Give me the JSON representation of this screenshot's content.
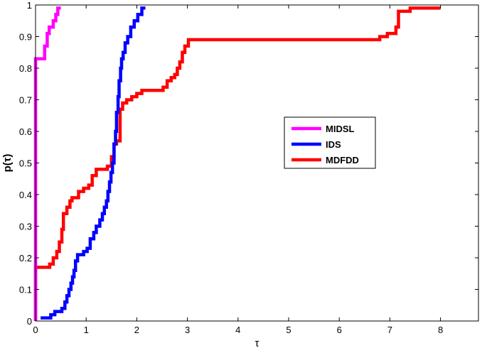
{
  "chart_data": {
    "type": "line",
    "title": "",
    "xlabel": "τ",
    "ylabel": "p(τ)",
    "xlim": [
      0,
      8.75
    ],
    "ylim": [
      0,
      1
    ],
    "xticks": [
      0,
      1,
      2,
      3,
      4,
      5,
      6,
      7,
      8
    ],
    "yticks": [
      0,
      0.1,
      0.2,
      0.3,
      0.4,
      0.5,
      0.6,
      0.7,
      0.8,
      0.9,
      1
    ],
    "xtick_labels": [
      "0",
      "1",
      "2",
      "3",
      "4",
      "5",
      "6",
      "7",
      "8"
    ],
    "ytick_labels": [
      "0",
      "0.1",
      "0.2",
      "0.3",
      "0.4",
      "0.5",
      "0.6",
      "0.7",
      "0.8",
      "0.9",
      "1"
    ],
    "grid": false,
    "legend_position": "center-right",
    "series": [
      {
        "name": "MIDSL",
        "color": "#ff00ff",
        "step": true,
        "points": [
          [
            0,
            0
          ],
          [
            0,
            0.83
          ],
          [
            0.18,
            0.83
          ],
          [
            0.18,
            0.87
          ],
          [
            0.23,
            0.87
          ],
          [
            0.23,
            0.91
          ],
          [
            0.27,
            0.91
          ],
          [
            0.27,
            0.93
          ],
          [
            0.35,
            0.93
          ],
          [
            0.35,
            0.95
          ],
          [
            0.4,
            0.95
          ],
          [
            0.4,
            0.97
          ],
          [
            0.44,
            0.97
          ],
          [
            0.44,
            0.99
          ],
          [
            0.5,
            0.99
          ]
        ]
      },
      {
        "name": "IDS",
        "color": "#0000ff",
        "step": true,
        "points": [
          [
            0.1,
            0.01
          ],
          [
            0.3,
            0.01
          ],
          [
            0.3,
            0.02
          ],
          [
            0.38,
            0.02
          ],
          [
            0.38,
            0.03
          ],
          [
            0.52,
            0.03
          ],
          [
            0.52,
            0.04
          ],
          [
            0.58,
            0.04
          ],
          [
            0.58,
            0.06
          ],
          [
            0.62,
            0.06
          ],
          [
            0.62,
            0.08
          ],
          [
            0.66,
            0.08
          ],
          [
            0.66,
            0.1
          ],
          [
            0.7,
            0.1
          ],
          [
            0.7,
            0.12
          ],
          [
            0.73,
            0.12
          ],
          [
            0.73,
            0.14
          ],
          [
            0.76,
            0.14
          ],
          [
            0.76,
            0.16
          ],
          [
            0.79,
            0.16
          ],
          [
            0.79,
            0.19
          ],
          [
            0.83,
            0.19
          ],
          [
            0.83,
            0.21
          ],
          [
            0.95,
            0.21
          ],
          [
            0.95,
            0.22
          ],
          [
            1.02,
            0.22
          ],
          [
            1.02,
            0.23
          ],
          [
            1.08,
            0.23
          ],
          [
            1.08,
            0.26
          ],
          [
            1.15,
            0.26
          ],
          [
            1.15,
            0.28
          ],
          [
            1.2,
            0.28
          ],
          [
            1.2,
            0.3
          ],
          [
            1.27,
            0.3
          ],
          [
            1.27,
            0.32
          ],
          [
            1.32,
            0.32
          ],
          [
            1.32,
            0.34
          ],
          [
            1.36,
            0.34
          ],
          [
            1.36,
            0.36
          ],
          [
            1.4,
            0.36
          ],
          [
            1.4,
            0.38
          ],
          [
            1.43,
            0.38
          ],
          [
            1.43,
            0.41
          ],
          [
            1.46,
            0.41
          ],
          [
            1.46,
            0.44
          ],
          [
            1.49,
            0.44
          ],
          [
            1.49,
            0.47
          ],
          [
            1.52,
            0.47
          ],
          [
            1.52,
            0.5
          ],
          [
            1.55,
            0.5
          ],
          [
            1.55,
            0.56
          ],
          [
            1.58,
            0.56
          ],
          [
            1.58,
            0.6
          ],
          [
            1.6,
            0.6
          ],
          [
            1.6,
            0.66
          ],
          [
            1.63,
            0.66
          ],
          [
            1.63,
            0.71
          ],
          [
            1.65,
            0.71
          ],
          [
            1.65,
            0.76
          ],
          [
            1.68,
            0.76
          ],
          [
            1.68,
            0.8
          ],
          [
            1.7,
            0.8
          ],
          [
            1.7,
            0.83
          ],
          [
            1.73,
            0.83
          ],
          [
            1.73,
            0.85
          ],
          [
            1.77,
            0.85
          ],
          [
            1.77,
            0.88
          ],
          [
            1.82,
            0.88
          ],
          [
            1.82,
            0.9
          ],
          [
            1.88,
            0.9
          ],
          [
            1.88,
            0.93
          ],
          [
            1.95,
            0.93
          ],
          [
            1.95,
            0.95
          ],
          [
            2.02,
            0.95
          ],
          [
            2.02,
            0.97
          ],
          [
            2.1,
            0.97
          ],
          [
            2.1,
            0.99
          ],
          [
            2.17,
            0.99
          ]
        ]
      },
      {
        "name": "MDFDD",
        "color": "#ff0000",
        "step": true,
        "points": [
          [
            0,
            0
          ],
          [
            0,
            0.17
          ],
          [
            0.28,
            0.17
          ],
          [
            0.28,
            0.18
          ],
          [
            0.35,
            0.18
          ],
          [
            0.35,
            0.2
          ],
          [
            0.42,
            0.2
          ],
          [
            0.42,
            0.22
          ],
          [
            0.47,
            0.22
          ],
          [
            0.47,
            0.25
          ],
          [
            0.52,
            0.25
          ],
          [
            0.52,
            0.29
          ],
          [
            0.55,
            0.29
          ],
          [
            0.55,
            0.34
          ],
          [
            0.62,
            0.34
          ],
          [
            0.62,
            0.36
          ],
          [
            0.68,
            0.36
          ],
          [
            0.68,
            0.38
          ],
          [
            0.72,
            0.38
          ],
          [
            0.72,
            0.39
          ],
          [
            0.85,
            0.39
          ],
          [
            0.85,
            0.41
          ],
          [
            0.95,
            0.41
          ],
          [
            0.95,
            0.42
          ],
          [
            1.05,
            0.42
          ],
          [
            1.05,
            0.43
          ],
          [
            1.12,
            0.43
          ],
          [
            1.12,
            0.46
          ],
          [
            1.2,
            0.46
          ],
          [
            1.2,
            0.48
          ],
          [
            1.42,
            0.48
          ],
          [
            1.42,
            0.49
          ],
          [
            1.5,
            0.49
          ],
          [
            1.5,
            0.52
          ],
          [
            1.55,
            0.52
          ],
          [
            1.55,
            0.56
          ],
          [
            1.6,
            0.56
          ],
          [
            1.6,
            0.57
          ],
          [
            1.67,
            0.57
          ],
          [
            1.67,
            0.67
          ],
          [
            1.72,
            0.67
          ],
          [
            1.72,
            0.69
          ],
          [
            1.8,
            0.69
          ],
          [
            1.8,
            0.7
          ],
          [
            1.9,
            0.7
          ],
          [
            1.9,
            0.71
          ],
          [
            2.0,
            0.71
          ],
          [
            2.0,
            0.72
          ],
          [
            2.1,
            0.72
          ],
          [
            2.1,
            0.73
          ],
          [
            2.52,
            0.73
          ],
          [
            2.52,
            0.74
          ],
          [
            2.6,
            0.74
          ],
          [
            2.6,
            0.76
          ],
          [
            2.68,
            0.76
          ],
          [
            2.68,
            0.77
          ],
          [
            2.75,
            0.77
          ],
          [
            2.75,
            0.78
          ],
          [
            2.8,
            0.78
          ],
          [
            2.8,
            0.8
          ],
          [
            2.85,
            0.8
          ],
          [
            2.85,
            0.82
          ],
          [
            2.9,
            0.82
          ],
          [
            2.9,
            0.85
          ],
          [
            2.95,
            0.85
          ],
          [
            2.95,
            0.87
          ],
          [
            3.02,
            0.87
          ],
          [
            3.02,
            0.89
          ],
          [
            6.8,
            0.89
          ],
          [
            6.8,
            0.9
          ],
          [
            6.95,
            0.9
          ],
          [
            6.95,
            0.91
          ],
          [
            7.12,
            0.91
          ],
          [
            7.12,
            0.93
          ],
          [
            7.17,
            0.93
          ],
          [
            7.17,
            0.98
          ],
          [
            7.4,
            0.98
          ],
          [
            7.4,
            0.99
          ],
          [
            8.0,
            0.99
          ]
        ]
      }
    ]
  }
}
